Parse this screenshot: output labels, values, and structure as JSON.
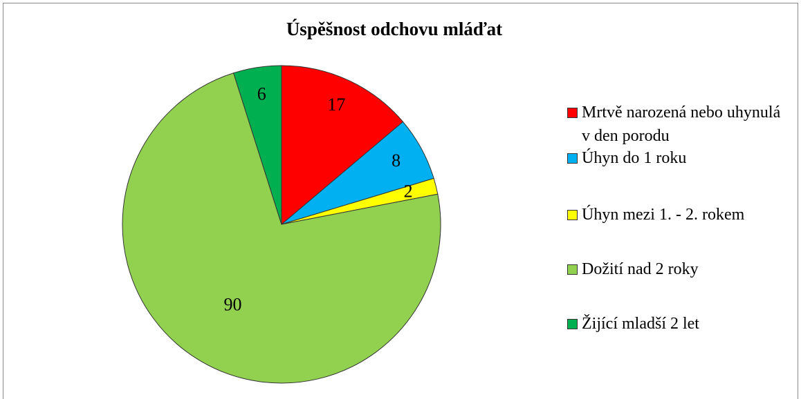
{
  "chart_data": {
    "type": "pie",
    "title": "Úspěšnost odchovu mláďat",
    "categories": [
      "Mrtvě narozená nebo uhynulá v den porodu",
      "Úhyn do 1 roku",
      "Úhyn mezi 1. - 2. rokem",
      "Dožití nad 2 roky",
      "Žijící mladší 2 let"
    ],
    "values": [
      17,
      8,
      2,
      90,
      6
    ],
    "colors": [
      "#ff0000",
      "#00b0f0",
      "#ffff00",
      "#92d050",
      "#00b050"
    ],
    "legend": "right"
  }
}
